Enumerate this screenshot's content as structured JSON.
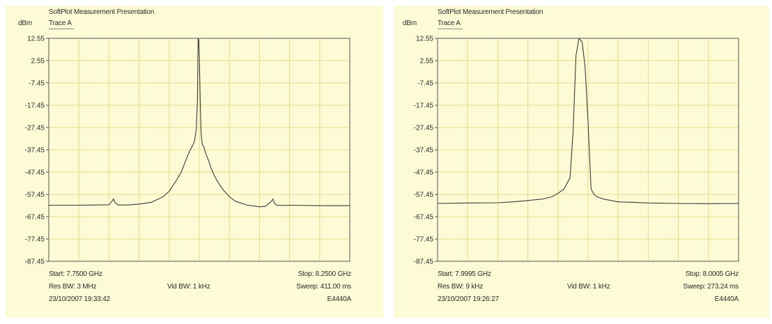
{
  "charts": [
    {
      "app_title": "SoftPlot Measurement Presentation",
      "unit": "dBm",
      "trace": "Trace A",
      "start": "Start: 7.7500 GHz",
      "stop": "Stop: 8.2500 GHz",
      "res_bw": "Res BW: 3 MHz",
      "vid_bw": "Vid BW: 1 kHz",
      "sweep": "Sweep: 411.00 ms",
      "timestamp": "23/10/2007 19:33:42",
      "instrument": "E4440A"
    },
    {
      "app_title": "SoftPlot Measurement Presentation",
      "unit": "dBm",
      "trace": "Trace A",
      "start": "Start: 7.9995 GHz",
      "stop": "Stop: 8.0005 GHz",
      "res_bw": "Res BW: 9 kHz",
      "vid_bw": "Vid BW: 1 kHz",
      "sweep": "Sweep: 273.24 ms",
      "timestamp": "23/10/2007 19:26:27",
      "instrument": "E4440A"
    }
  ],
  "colors": {
    "panel_bg": "#fdfbd6",
    "grid": "#e8d98a",
    "axis": "#555555",
    "trace": "#3a3a3a"
  },
  "chart_data": [
    {
      "type": "line",
      "ylabel": "dBm",
      "yticks": [
        "12.55",
        "2.55",
        "-7.45",
        "-17.45",
        "-27.45",
        "-37.45",
        "-47.45",
        "-57.45",
        "-67.45",
        "-77.45",
        "-87.45"
      ],
      "ylim": [
        -87.45,
        12.55
      ],
      "xlim": [
        7.75,
        8.25
      ],
      "x_unit": "GHz",
      "grid": true,
      "series": [
        {
          "x": [
            7.75,
            7.8,
            7.85,
            7.855,
            7.8575,
            7.86,
            7.865,
            7.88,
            7.9,
            7.92,
            7.94,
            7.95,
            7.96,
            7.97,
            7.975,
            7.98,
            7.985,
            7.99,
            7.9925,
            7.995,
            7.997,
            7.998,
            7.999,
            8.0,
            8.001,
            8.002,
            8.003,
            8.005,
            8.0075,
            8.01,
            8.015,
            8.02,
            8.025,
            8.03,
            8.04,
            8.05,
            8.06,
            8.08,
            8.1,
            8.11,
            8.12,
            8.1225,
            8.125,
            8.13,
            8.15,
            8.2,
            8.25
          ],
          "y": [
            -62.3,
            -62.3,
            -62.1,
            -60.5,
            -59.5,
            -61.0,
            -62.2,
            -62.2,
            -61.8,
            -61.0,
            -58.5,
            -56.0,
            -52.0,
            -47.5,
            -44.0,
            -40.5,
            -37.5,
            -35.0,
            -33.0,
            -28.0,
            -15.0,
            12.55,
            12.0,
            5.0,
            -8.0,
            -20.0,
            -30.0,
            -35.0,
            -36.0,
            -38.5,
            -42.0,
            -46.0,
            -49.0,
            -51.5,
            -55.5,
            -58.5,
            -60.5,
            -62.3,
            -63.0,
            -62.8,
            -60.5,
            -59.5,
            -61.5,
            -62.4,
            -62.3,
            -62.5,
            -62.5
          ]
        }
      ]
    },
    {
      "type": "line",
      "ylabel": "dBm",
      "yticks": [
        "12.55",
        "2.55",
        "-7.45",
        "-17.45",
        "-27.45",
        "-37.45",
        "-47.45",
        "-57.45",
        "-67.45",
        "-77.45",
        "-87.45"
      ],
      "ylim": [
        -87.45,
        12.55
      ],
      "xlim": [
        7.9995,
        8.0005
      ],
      "x_unit": "GHz",
      "grid": true,
      "series": [
        {
          "x": [
            7.9995,
            7.9996,
            7.9997,
            7.99975,
            7.9998,
            7.99985,
            7.99988,
            7.9999,
            7.99992,
            7.99994,
            7.99995,
            7.99996,
            7.99997,
            7.99998,
            7.99999,
            8.0,
            8.00001,
            8.00002,
            8.00003,
            8.00005,
            8.00008,
            8.0001,
            8.00015,
            8.0002,
            8.0003,
            8.0004,
            8.0005
          ],
          "y": [
            -61.5,
            -61.3,
            -61.2,
            -60.8,
            -60.2,
            -59.5,
            -58.5,
            -57.0,
            -55.0,
            -50.0,
            -30.0,
            5.0,
            12.5,
            11.0,
            0.0,
            -25.0,
            -55.0,
            -57.5,
            -58.5,
            -59.5,
            -60.3,
            -60.8,
            -61.0,
            -61.3,
            -61.5,
            -61.6,
            -61.5
          ]
        }
      ]
    }
  ]
}
